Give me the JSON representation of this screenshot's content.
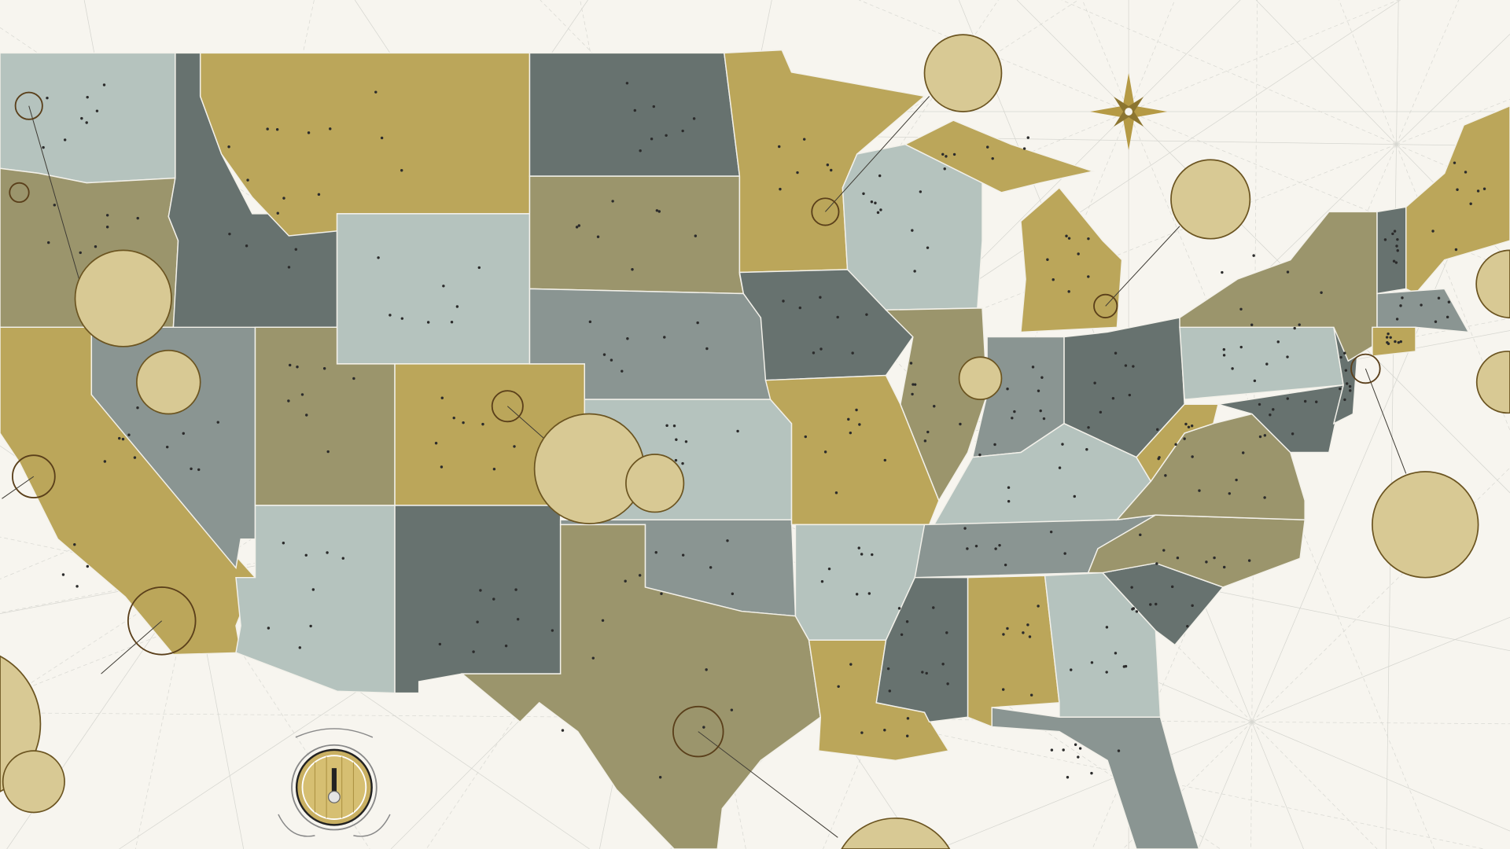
{
  "map": {
    "colors": {
      "background": "#f7f5ef",
      "gold": "#bba65a",
      "dark_slate": "#67726f",
      "light_sage": "#b5c3be",
      "olive": "#9b956c",
      "mid_gray": "#8a9592",
      "inset_fill": "#d8c994",
      "inset_ring": "#6b5420"
    },
    "icons": {
      "compass": "compass-rose-icon",
      "logo": "beer-tap-barrel-logo"
    }
  }
}
